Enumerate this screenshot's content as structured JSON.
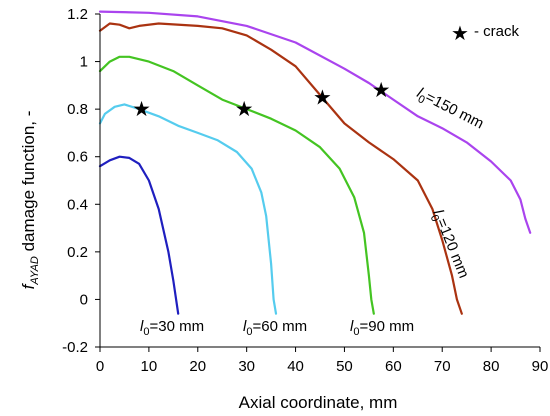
{
  "chart_data": {
    "type": "line",
    "xlabel": "Axial coordinate, mm",
    "ylabel_main": "f",
    "ylabel_sub": "AYAD",
    "ylabel_rest": " damage function, -",
    "xlim": [
      0,
      90
    ],
    "ylim": [
      -0.2,
      1.2
    ],
    "x_ticks": [
      0,
      10,
      20,
      30,
      40,
      50,
      60,
      70,
      80,
      90
    ],
    "y_ticks": [
      -0.2,
      0,
      0.2,
      0.4,
      0.6,
      0.8,
      1,
      1.2
    ],
    "grid": false,
    "legend": {
      "symbol": "★",
      "label": "- crack",
      "position": "top-right"
    },
    "series": [
      {
        "name_main": "l",
        "name_sub": "0",
        "name_rest": "=30 mm",
        "color": "#1f1fbf",
        "points": [
          [
            0,
            0.56
          ],
          [
            2,
            0.585
          ],
          [
            4,
            0.6
          ],
          [
            6,
            0.595
          ],
          [
            8,
            0.57
          ],
          [
            10,
            0.5
          ],
          [
            12,
            0.38
          ],
          [
            14,
            0.2
          ],
          [
            15,
            0.08
          ],
          [
            16,
            -0.06
          ]
        ]
      },
      {
        "name_main": "l",
        "name_sub": "0",
        "name_rest": "=60 mm",
        "color": "#55ccee",
        "points": [
          [
            0,
            0.74
          ],
          [
            1,
            0.78
          ],
          [
            3,
            0.81
          ],
          [
            5,
            0.82
          ],
          [
            8,
            0.8
          ],
          [
            12,
            0.77
          ],
          [
            16,
            0.73
          ],
          [
            20,
            0.7
          ],
          [
            24,
            0.67
          ],
          [
            28,
            0.62
          ],
          [
            31,
            0.55
          ],
          [
            33,
            0.45
          ],
          [
            34,
            0.35
          ],
          [
            35,
            0.15
          ],
          [
            35.5,
            0.0
          ],
          [
            36,
            -0.06
          ]
        ]
      },
      {
        "name_main": "l",
        "name_sub": "0",
        "name_rest": "=90 mm",
        "color": "#44c422",
        "points": [
          [
            0,
            0.96
          ],
          [
            2,
            1.0
          ],
          [
            4,
            1.02
          ],
          [
            6,
            1.02
          ],
          [
            10,
            1.0
          ],
          [
            15,
            0.96
          ],
          [
            20,
            0.9
          ],
          [
            25,
            0.84
          ],
          [
            30,
            0.8
          ],
          [
            35,
            0.76
          ],
          [
            40,
            0.71
          ],
          [
            45,
            0.64
          ],
          [
            49,
            0.55
          ],
          [
            52,
            0.43
          ],
          [
            54,
            0.28
          ],
          [
            55,
            0.1
          ],
          [
            55.5,
            0.0
          ],
          [
            56,
            -0.06
          ]
        ]
      },
      {
        "name_main": "l",
        "name_sub": "0",
        "name_rest": "=120 mm",
        "color": "#aa3311",
        "points": [
          [
            0,
            1.13
          ],
          [
            2,
            1.16
          ],
          [
            4,
            1.155
          ],
          [
            6,
            1.14
          ],
          [
            8,
            1.15
          ],
          [
            12,
            1.16
          ],
          [
            20,
            1.15
          ],
          [
            25,
            1.14
          ],
          [
            30,
            1.11
          ],
          [
            35,
            1.05
          ],
          [
            40,
            0.98
          ],
          [
            45,
            0.86
          ],
          [
            50,
            0.74
          ],
          [
            55,
            0.66
          ],
          [
            60,
            0.59
          ],
          [
            65,
            0.5
          ],
          [
            68,
            0.38
          ],
          [
            70,
            0.25
          ],
          [
            72,
            0.1
          ],
          [
            73,
            0.0
          ],
          [
            74,
            -0.06
          ]
        ]
      },
      {
        "name_main": "l",
        "name_sub": "0",
        "name_rest": "=150 mm",
        "color": "#aa44ee",
        "points": [
          [
            0,
            1.21
          ],
          [
            10,
            1.205
          ],
          [
            20,
            1.19
          ],
          [
            30,
            1.15
          ],
          [
            40,
            1.08
          ],
          [
            50,
            0.97
          ],
          [
            55,
            0.91
          ],
          [
            60,
            0.84
          ],
          [
            65,
            0.77
          ],
          [
            70,
            0.72
          ],
          [
            75,
            0.66
          ],
          [
            80,
            0.58
          ],
          [
            84,
            0.5
          ],
          [
            86,
            0.42
          ],
          [
            87,
            0.34
          ],
          [
            88,
            0.28
          ]
        ]
      }
    ],
    "crack_points": [
      [
        8.5,
        0.8
      ],
      [
        29.5,
        0.8
      ],
      [
        45.5,
        0.85
      ],
      [
        57.5,
        0.88
      ]
    ]
  }
}
